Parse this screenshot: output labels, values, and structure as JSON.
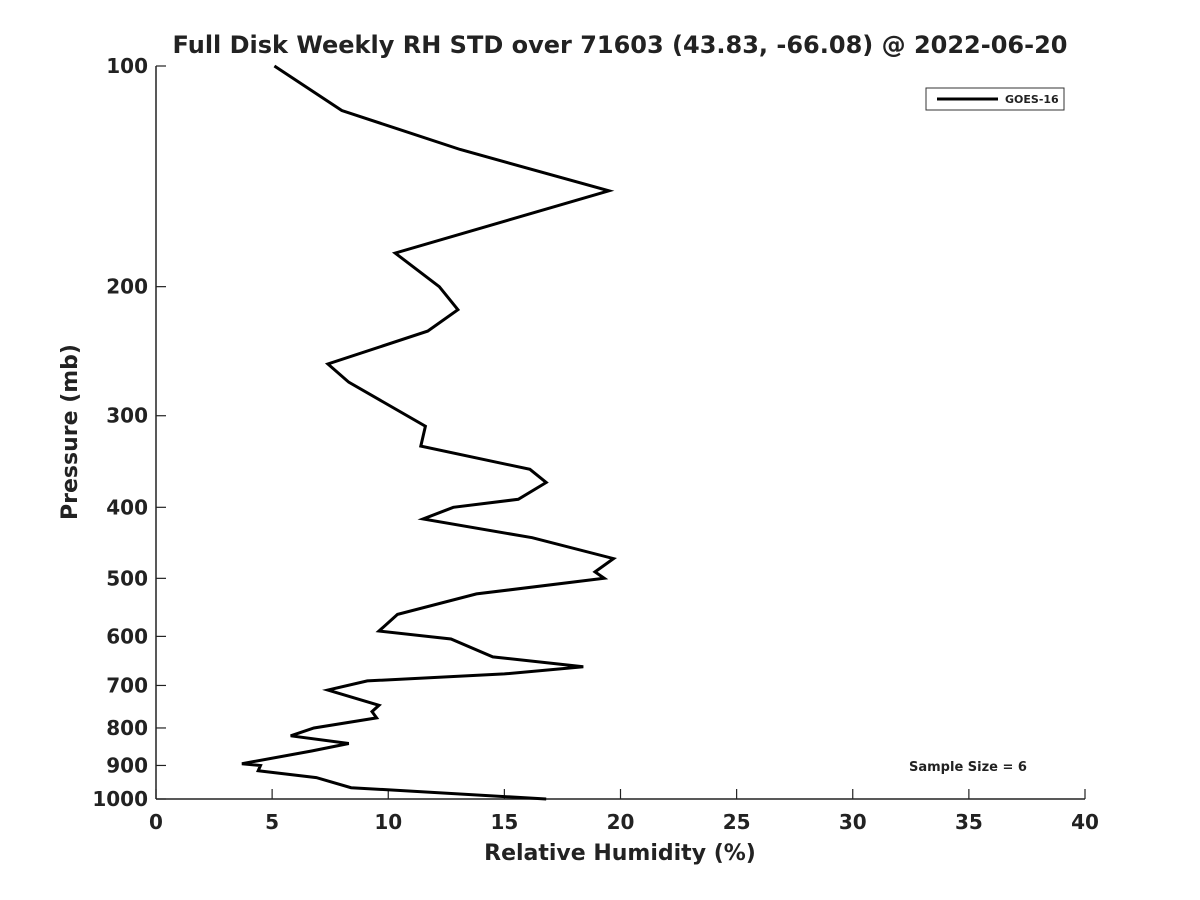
{
  "chart_data": {
    "type": "line",
    "title": "Full Disk Weekly RH STD over 71603 (43.83, -66.08) @ 2022-06-20",
    "xlabel": "Relative Humidity (%)",
    "ylabel": "Pressure (mb)",
    "xlim": [
      0,
      40
    ],
    "ylim": [
      100,
      1000
    ],
    "yscale": "log",
    "y_inverted": true,
    "xticks": [
      0,
      5,
      10,
      15,
      20,
      25,
      30,
      35,
      40
    ],
    "yticks": [
      100,
      200,
      300,
      400,
      500,
      600,
      700,
      800,
      900,
      1000
    ],
    "grid": false,
    "legend_position": "top-right",
    "annotation": "Sample Size = 6",
    "series": [
      {
        "name": "GOES-16",
        "color": "#000000",
        "x": [
          5.1,
          8.0,
          13.1,
          19.5,
          10.3,
          12.2,
          13.0,
          11.7,
          7.4,
          8.3,
          11.6,
          11.4,
          16.1,
          16.8,
          15.6,
          12.8,
          11.5,
          16.2,
          19.7,
          18.9,
          19.3,
          13.8,
          10.4,
          9.6,
          12.7,
          14.5,
          18.4,
          15.0,
          9.1,
          7.4,
          9.6,
          9.3,
          9.5,
          6.8,
          5.8,
          8.3,
          6.7,
          3.7,
          4.5,
          4.4,
          6.9,
          8.4,
          16.8
        ],
        "y": [
          100,
          115,
          130,
          148,
          180,
          200,
          215,
          230,
          255,
          270,
          310,
          330,
          355,
          370,
          390,
          400,
          415,
          440,
          470,
          490,
          500,
          525,
          560,
          590,
          605,
          640,
          660,
          675,
          690,
          710,
          745,
          760,
          775,
          800,
          820,
          840,
          860,
          895,
          900,
          915,
          935,
          965,
          1000
        ]
      }
    ]
  }
}
